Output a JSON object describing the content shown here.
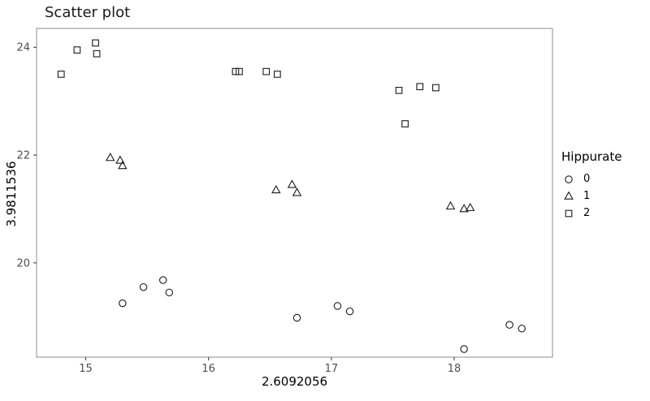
{
  "chart_data": {
    "type": "scatter",
    "title": "Scatter plot",
    "xlabel": "2.6092056",
    "ylabel": "3.9811536",
    "xlim": [
      14.6,
      18.8
    ],
    "ylim": [
      18.25,
      24.35
    ],
    "xticks": [
      15,
      16,
      17,
      18
    ],
    "yticks": [
      20,
      22,
      24
    ],
    "grid": false,
    "legend_title": "Hippurate",
    "legend_position": "right",
    "colors": {
      "panel_border": "#8c8c8c",
      "tick": "#333333",
      "tick_label": "#4d4d4d",
      "marker": "#1a1a1a",
      "background": "#ffffff"
    },
    "series": [
      {
        "name": "0",
        "marker": "circle",
        "points": [
          [
            15.3,
            19.25
          ],
          [
            15.47,
            19.55
          ],
          [
            15.63,
            19.68
          ],
          [
            15.68,
            19.45
          ],
          [
            16.72,
            18.98
          ],
          [
            17.05,
            19.2
          ],
          [
            17.15,
            19.1
          ],
          [
            18.08,
            18.4
          ],
          [
            18.45,
            18.85
          ],
          [
            18.55,
            18.78
          ]
        ]
      },
      {
        "name": "1",
        "marker": "triangle",
        "points": [
          [
            15.2,
            21.95
          ],
          [
            15.28,
            21.9
          ],
          [
            15.3,
            21.8
          ],
          [
            16.55,
            21.35
          ],
          [
            16.68,
            21.45
          ],
          [
            16.72,
            21.3
          ],
          [
            17.97,
            21.05
          ],
          [
            18.08,
            21.0
          ],
          [
            18.13,
            21.02
          ]
        ]
      },
      {
        "name": "2",
        "marker": "square",
        "points": [
          [
            14.8,
            23.5
          ],
          [
            14.93,
            23.95
          ],
          [
            15.08,
            24.08
          ],
          [
            15.09,
            23.88
          ],
          [
            16.22,
            23.55
          ],
          [
            16.25,
            23.55
          ],
          [
            16.47,
            23.55
          ],
          [
            16.56,
            23.5
          ],
          [
            17.55,
            23.2
          ],
          [
            17.6,
            22.58
          ],
          [
            17.72,
            23.27
          ],
          [
            17.85,
            23.25
          ]
        ]
      }
    ]
  }
}
